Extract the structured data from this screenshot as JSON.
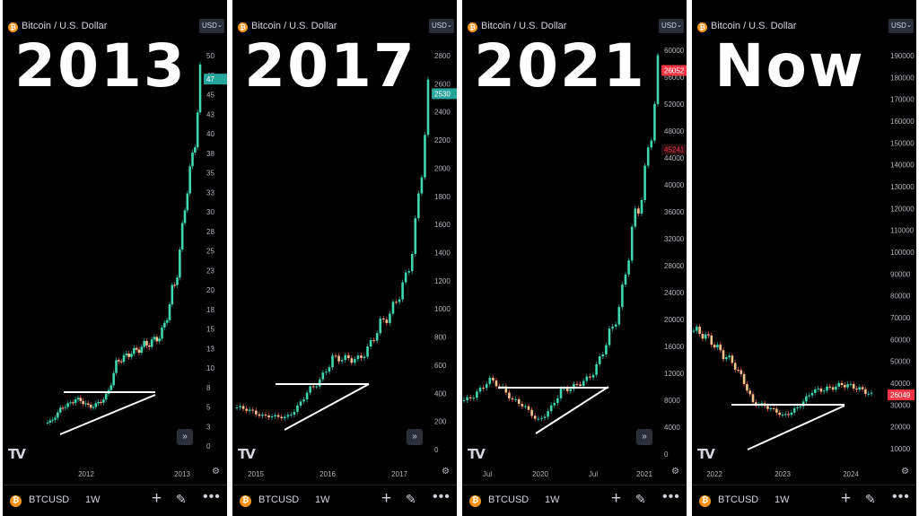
{
  "panels": [
    {
      "label": "2013",
      "title": "Bitcoin / U.S. Dollar",
      "currency": "USD",
      "symbol": "BTCUSD",
      "timeframe": "1W",
      "price_badge": "47",
      "badge_color": "#26a69a",
      "y_ticks": [
        "50",
        "48",
        "45",
        "43",
        "40",
        "38",
        "35",
        "33",
        "30",
        "28",
        "25",
        "23",
        "20",
        "18",
        "15",
        "13",
        "10",
        "8",
        "5",
        "3",
        "0"
      ],
      "time_labels": [
        "2012",
        "2013"
      ],
      "show_scroll_button": true
    },
    {
      "label": "2017",
      "title": "Bitcoin / U.S. Dollar",
      "currency": "USD",
      "symbol": "BTCUSD",
      "timeframe": "1W",
      "price_badge": "2530",
      "badge_color": "#26a69a",
      "y_ticks": [
        "2800",
        "2600",
        "2400",
        "2200",
        "2000",
        "1800",
        "1600",
        "1400",
        "1200",
        "1000",
        "800",
        "600",
        "400",
        "200",
        "0"
      ],
      "time_labels": [
        "2015",
        "2016",
        "2017"
      ],
      "show_scroll_button": true
    },
    {
      "label": "2021",
      "title": "Bitcoin / U.S. Dollar",
      "currency": "USD",
      "symbol": "BTCUSD",
      "timeframe": "1W",
      "price_badge": "26052",
      "badge_color": "#f23645",
      "price_badge_secondary": "45241",
      "y_ticks": [
        "60000",
        "56000",
        "52000",
        "48000",
        "44000",
        "40000",
        "36000",
        "32000",
        "28000",
        "24000",
        "20000",
        "16000",
        "12000",
        "8000",
        "4000",
        "0"
      ],
      "time_labels": [
        "Jul",
        "2020",
        "Jul",
        "2021"
      ],
      "show_scroll_button": true
    },
    {
      "label": "Now",
      "title": "Bitcoin / U.S. Dollar",
      "currency": "USD",
      "symbol": "BTCUSD",
      "timeframe": "1W",
      "price_badge": "26049",
      "badge_color": "#f23645",
      "y_ticks": [
        "190000",
        "180000",
        "170000",
        "160000",
        "150000",
        "140000",
        "130000",
        "120000",
        "110000",
        "100000",
        "90000",
        "80000",
        "70000",
        "60000",
        "50000",
        "40000",
        "30000",
        "20000",
        "10000"
      ],
      "time_labels": [
        "2022",
        "2023",
        "2024"
      ],
      "show_scroll_button": false
    }
  ],
  "chart_data": [
    {
      "type": "line",
      "title": "2013",
      "x": [
        "2011-10",
        "2011-12",
        "2012-02",
        "2012-04",
        "2012-06",
        "2012-08",
        "2012-10",
        "2012-12",
        "2013-01",
        "2013-02",
        "2013-03",
        "2013-04"
      ],
      "values": [
        3,
        5,
        6,
        5,
        6,
        11,
        12,
        13,
        14,
        20,
        33,
        47
      ],
      "ylim": [
        0,
        50
      ],
      "pattern": "ascending triangle breakout"
    },
    {
      "type": "line",
      "title": "2017",
      "x": [
        "2015-01",
        "2015-05",
        "2015-09",
        "2016-01",
        "2016-06",
        "2016-10",
        "2017-01",
        "2017-03",
        "2017-05"
      ],
      "values": [
        300,
        240,
        230,
        430,
        650,
        640,
        900,
        1200,
        2530
      ],
      "ylim": [
        0,
        2800
      ],
      "pattern": "ascending triangle breakout"
    },
    {
      "type": "line",
      "title": "2021",
      "x": [
        "2019-05",
        "2019-07",
        "2019-11",
        "2020-03",
        "2020-06",
        "2020-09",
        "2020-11",
        "2021-01",
        "2021-02"
      ],
      "values": [
        8000,
        11000,
        8000,
        5000,
        9500,
        11000,
        18000,
        35000,
        57000
      ],
      "ylim": [
        0,
        60000
      ],
      "pattern": "ascending triangle breakout"
    },
    {
      "type": "line",
      "title": "Now",
      "x": [
        "2021-12",
        "2022-03",
        "2022-06",
        "2022-11",
        "2023-03",
        "2023-06",
        "2023-09"
      ],
      "values": [
        57000,
        45000,
        22000,
        16000,
        28000,
        31000,
        26049
      ],
      "ylim": [
        0,
        190000
      ],
      "pattern": "ascending triangle"
    }
  ]
}
